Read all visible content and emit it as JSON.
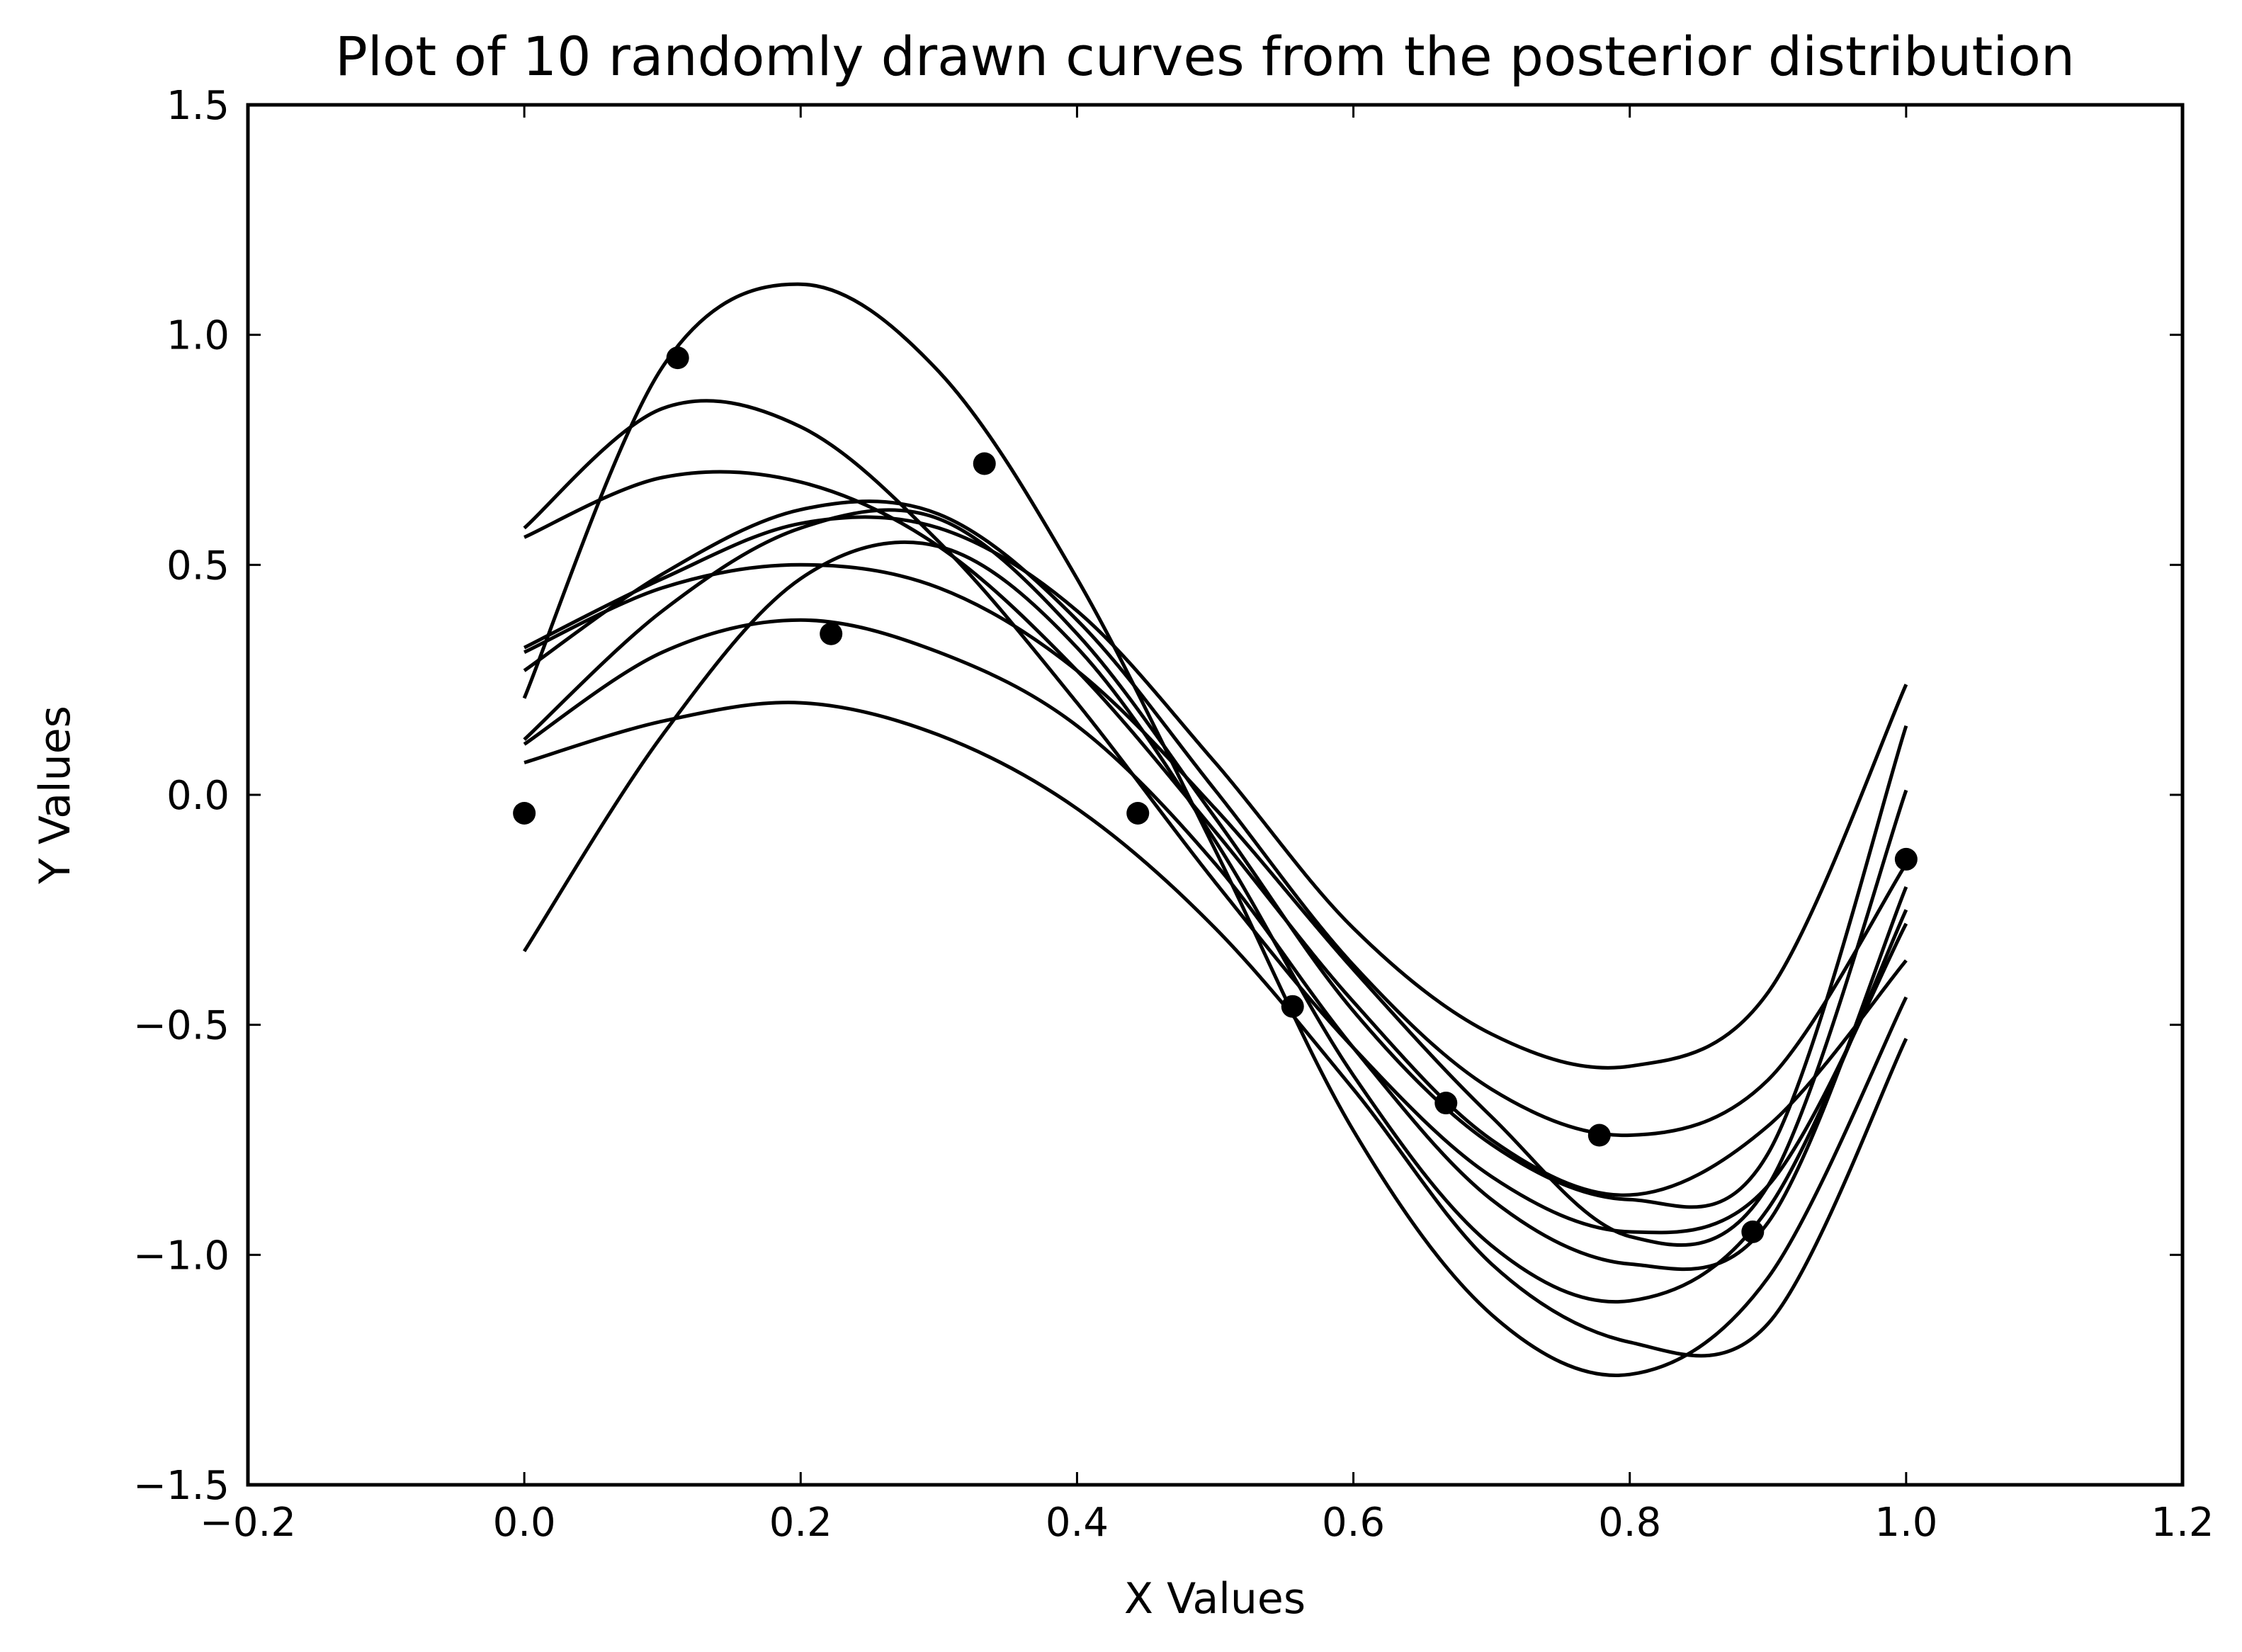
{
  "chart_data": {
    "type": "line",
    "title": "Plot of 10 randomly drawn curves from the posterior distribution",
    "xlabel": "X Values",
    "ylabel": "Y Values",
    "xlim": [
      -0.2,
      1.2
    ],
    "ylim": [
      -1.5,
      1.5
    ],
    "xticks": [
      -0.2,
      0.0,
      0.2,
      0.4,
      0.6,
      0.8,
      1.0,
      1.2
    ],
    "yticks": [
      -1.5,
      -1.0,
      -0.5,
      0.0,
      0.5,
      1.0,
      1.5
    ],
    "xtick_labels": [
      "−0.2",
      "0.0",
      "0.2",
      "0.4",
      "0.6",
      "0.8",
      "1.0",
      "1.2"
    ],
    "ytick_labels": [
      "−1.5",
      "−1.0",
      "−0.5",
      "0.0",
      "0.5",
      "1.0",
      "1.5"
    ],
    "grid": false,
    "legend": false,
    "line_color": "#000000",
    "observations": {
      "x": [
        0.0,
        0.111,
        0.222,
        0.333,
        0.444,
        0.556,
        0.667,
        0.778,
        0.889,
        1.0
      ],
      "y": [
        -0.04,
        0.95,
        0.35,
        0.72,
        -0.04,
        -0.46,
        -0.67,
        -0.74,
        -0.95,
        -0.14
      ]
    },
    "series": [
      {
        "x": [
          0.0,
          0.1,
          0.2,
          0.3,
          0.4,
          0.5,
          0.6,
          0.7,
          0.8,
          0.9,
          1.0
        ],
        "y": [
          0.21,
          0.93,
          1.11,
          0.92,
          0.47,
          -0.12,
          -0.73,
          -1.13,
          -1.26,
          -1.05,
          -0.44
        ]
      },
      {
        "x": [
          0.0,
          0.1,
          0.2,
          0.3,
          0.4,
          0.5,
          0.6,
          0.7,
          0.8,
          0.9,
          1.0
        ],
        "y": [
          0.58,
          0.84,
          0.8,
          0.55,
          0.2,
          -0.19,
          -0.55,
          -0.83,
          -0.95,
          -0.85,
          -0.28
        ]
      },
      {
        "x": [
          0.0,
          0.1,
          0.2,
          0.3,
          0.4,
          0.5,
          0.6,
          0.7,
          0.8,
          0.9,
          1.0
        ],
        "y": [
          0.56,
          0.69,
          0.68,
          0.54,
          0.27,
          -0.08,
          -0.45,
          -0.75,
          -0.87,
          -0.72,
          -0.36
        ]
      },
      {
        "x": [
          0.0,
          0.1,
          0.2,
          0.3,
          0.4,
          0.5,
          0.6,
          0.7,
          0.8,
          0.9,
          1.0
        ],
        "y": [
          0.32,
          0.47,
          0.59,
          0.58,
          0.4,
          0.07,
          -0.29,
          -0.52,
          -0.59,
          -0.43,
          0.24
        ]
      },
      {
        "x": [
          0.0,
          0.1,
          0.2,
          0.3,
          0.4,
          0.5,
          0.6,
          0.7,
          0.8,
          0.9,
          1.0
        ],
        "y": [
          0.27,
          0.48,
          0.62,
          0.61,
          0.38,
          0.01,
          -0.37,
          -0.64,
          -0.74,
          -0.62,
          -0.15
        ]
      },
      {
        "x": [
          0.0,
          0.1,
          0.2,
          0.3,
          0.4,
          0.5,
          0.6,
          0.7,
          0.8,
          0.9,
          1.0
        ],
        "y": [
          0.12,
          0.4,
          0.58,
          0.6,
          0.35,
          -0.05,
          -0.47,
          -0.76,
          -0.88,
          -0.78,
          0.15
        ]
      },
      {
        "x": [
          0.0,
          0.1,
          0.2,
          0.3,
          0.4,
          0.5,
          0.6,
          0.7,
          0.8,
          0.9,
          1.0
        ],
        "y": [
          0.31,
          0.45,
          0.5,
          0.45,
          0.27,
          -0.03,
          -0.38,
          -0.7,
          -0.96,
          -0.85,
          0.01
        ]
      },
      {
        "x": [
          0.0,
          0.1,
          0.2,
          0.3,
          0.4,
          0.5,
          0.6,
          0.7,
          0.8,
          0.9,
          1.0
        ],
        "y": [
          0.11,
          0.31,
          0.38,
          0.31,
          0.15,
          -0.15,
          -0.55,
          -0.88,
          -1.02,
          -0.93,
          -0.2
        ]
      },
      {
        "x": [
          0.0,
          0.1,
          0.2,
          0.3,
          0.4,
          0.5,
          0.6,
          0.7,
          0.8,
          0.9,
          1.0
        ],
        "y": [
          -0.34,
          0.13,
          0.47,
          0.54,
          0.32,
          -0.1,
          -0.61,
          -0.98,
          -1.1,
          -0.9,
          -0.25
        ]
      },
      {
        "x": [
          0.0,
          0.1,
          0.2,
          0.3,
          0.4,
          0.5,
          0.6,
          0.7,
          0.8,
          0.9,
          1.0
        ],
        "y": [
          0.07,
          0.16,
          0.2,
          0.13,
          -0.03,
          -0.29,
          -0.64,
          -1.02,
          -1.19,
          -1.15,
          -0.53
        ]
      }
    ]
  }
}
